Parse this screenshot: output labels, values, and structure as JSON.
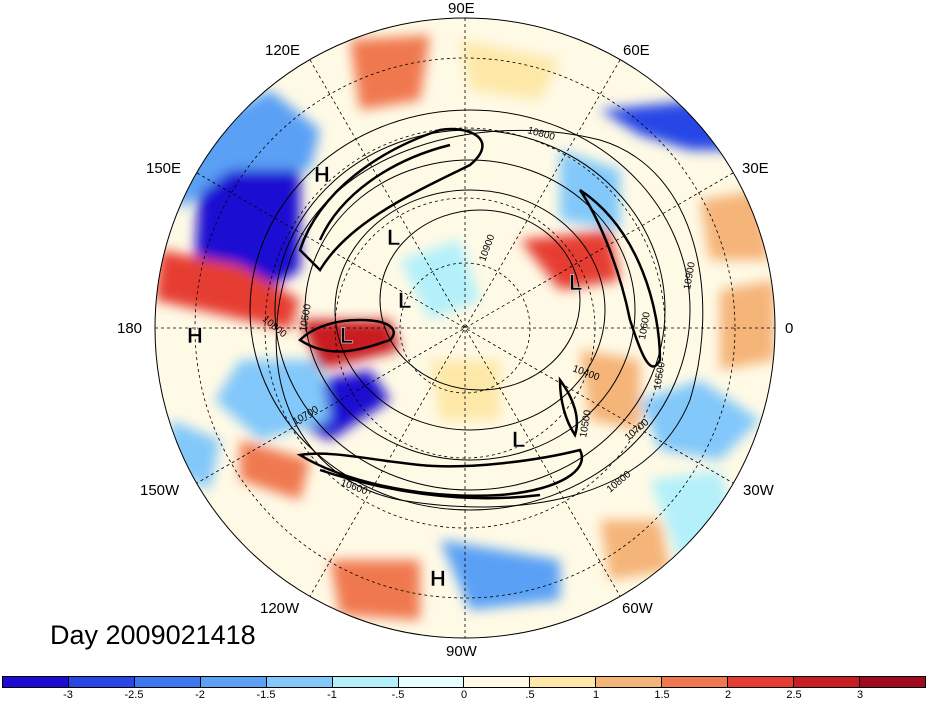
{
  "title": "Day 2009021418",
  "longitude_labels": {
    "top": "90E",
    "upper_left": "120E",
    "upper_right": "60E",
    "left_upper": "150E",
    "right_upper": "30E",
    "left": "180",
    "right": "0",
    "left_lower": "150W",
    "right_lower": "30W",
    "lower_left": "120W",
    "lower_right": "60W",
    "bottom": "90W"
  },
  "pressure_centers": {
    "high_label": "H",
    "low_label": "L"
  },
  "contour_labels": [
    "10800",
    "10900",
    "10500",
    "10800",
    "10700",
    "10400",
    "10500",
    "10700",
    "10800",
    "10600",
    "10900",
    "10600",
    "10500"
  ],
  "colorbar": {
    "ticks": [
      "-3",
      "-2.5",
      "-2",
      "-1.5",
      "-1",
      "-.5",
      "0",
      ".5",
      "1",
      "1.5",
      "2",
      "2.5",
      "3"
    ],
    "colors": [
      "#1e0ad2",
      "#2846e6",
      "#3c78f0",
      "#5aa0f5",
      "#82c8fa",
      "#b4f0fa",
      "#e6ffff",
      "#fffae6",
      "#fde8a8",
      "#f5b478",
      "#f07850",
      "#e63c32",
      "#c81e23",
      "#a00a1e"
    ]
  }
}
